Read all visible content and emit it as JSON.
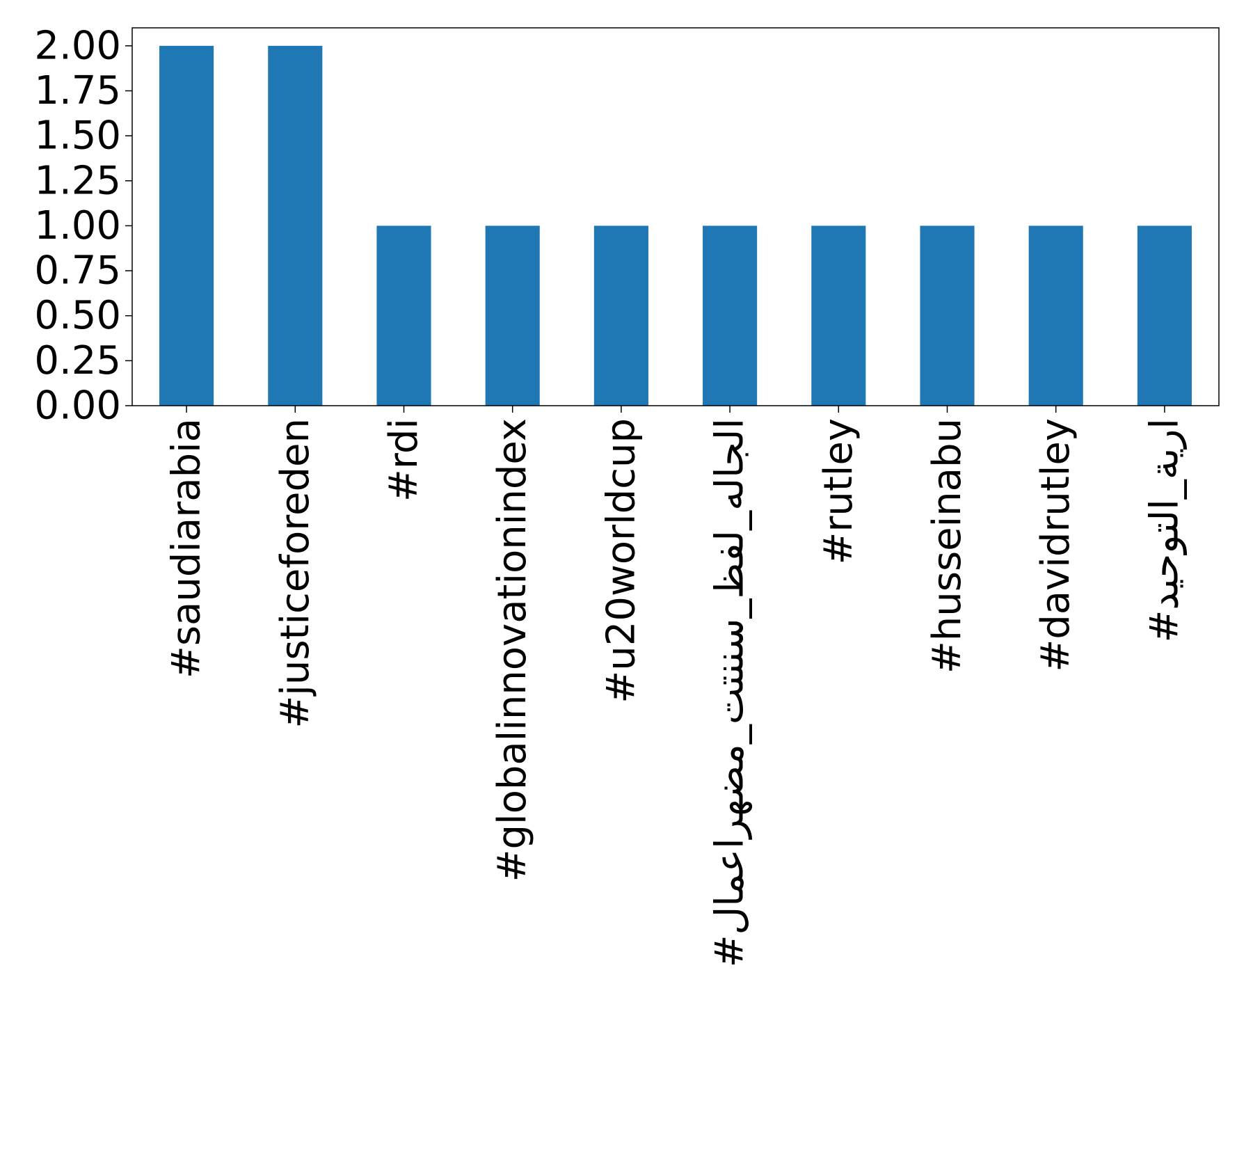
{
  "chart_data": {
    "type": "bar",
    "title": "",
    "xlabel": "",
    "ylabel": "",
    "categories": [
      "#saudiarabia",
      "#justiceforeden",
      "#rdi",
      "#globalinnovationindex",
      "#u20worldcup",
      "#الجاله_لفظ_سننتت_مضهراعمال",
      "#rutley",
      "#husseinabu",
      "#davidrutley",
      "#ارية_التوحيد"
    ],
    "values": [
      2,
      2,
      1,
      1,
      1,
      1,
      1,
      1,
      1,
      1
    ],
    "ylim": [
      0,
      2.1
    ],
    "yticks": [
      "0.00",
      "0.25",
      "0.50",
      "0.75",
      "1.00",
      "1.25",
      "1.50",
      "1.75",
      "2.00"
    ],
    "grid": false,
    "legend": "none",
    "bar_color": "#1f77b4"
  }
}
